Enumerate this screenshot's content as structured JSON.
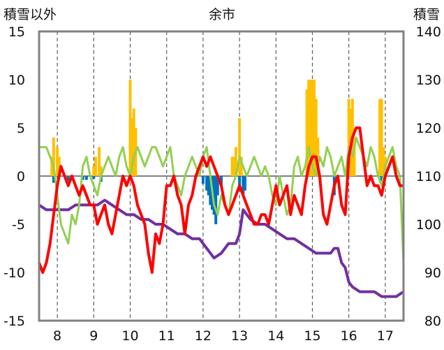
{
  "chart_data": {
    "type": "line",
    "title": "余市",
    "left_axis_label": "積雪以外",
    "right_axis_label": "積雪",
    "left_ylim": [
      -15,
      15
    ],
    "left_ticks": [
      15,
      10,
      5,
      0,
      -5,
      -10,
      -15
    ],
    "right_ylim": [
      80,
      140
    ],
    "right_ticks": [
      140,
      130,
      120,
      110,
      100,
      90,
      80
    ],
    "xlim": [
      7.5,
      17.5
    ],
    "x_ticks": [
      "8",
      "9",
      "10",
      "11",
      "12",
      "13",
      "14",
      "15",
      "16",
      "17"
    ],
    "grid": "dashed vertical",
    "colors": {
      "red": "#ff0000",
      "green": "#92d050",
      "purple": "#7030a0",
      "orange_bars": "#ffc000",
      "blue_bars": "#0070c0"
    },
    "series": [
      {
        "color": "red",
        "axis": "left",
        "x": [
          7.5,
          7.6,
          7.7,
          7.8,
          7.9,
          8.0,
          8.1,
          8.2,
          8.3,
          8.4,
          8.5,
          8.6,
          8.7,
          8.8,
          8.9,
          9.0,
          9.1,
          9.2,
          9.3,
          9.4,
          9.5,
          9.6,
          9.7,
          9.8,
          9.9,
          10.0,
          10.1,
          10.2,
          10.3,
          10.4,
          10.5,
          10.6,
          10.7,
          10.8,
          10.9,
          11.0,
          11.1,
          11.2,
          11.3,
          11.4,
          11.5,
          11.6,
          11.7,
          11.8,
          11.9,
          12.0,
          12.1,
          12.2,
          12.3,
          12.4,
          12.5,
          12.6,
          12.7,
          12.8,
          12.9,
          13.0,
          13.1,
          13.2,
          13.3,
          13.4,
          13.5,
          13.6,
          13.7,
          13.8,
          13.9,
          14.0,
          14.1,
          14.2,
          14.3,
          14.4,
          14.5,
          14.6,
          14.7,
          14.8,
          14.9,
          15.0,
          15.1,
          15.2,
          15.3,
          15.4,
          15.5,
          15.6,
          15.7,
          15.8,
          15.9,
          16.0,
          16.1,
          16.2,
          16.3,
          16.4,
          16.5,
          16.6,
          16.7,
          16.8,
          16.9,
          17.0,
          17.1,
          17.2,
          17.3,
          17.4,
          17.5
        ],
        "values": [
          -9,
          -10,
          -9,
          -7,
          -4,
          -1,
          1,
          0,
          -1,
          0,
          -1,
          -2,
          -1,
          -2,
          -3,
          -3,
          -5,
          -4,
          -3,
          -5,
          -6,
          -4,
          -2,
          0,
          -1,
          0,
          -1,
          -3,
          -4,
          -5,
          -8,
          -10,
          -6,
          -7,
          -5,
          -1,
          -1,
          0,
          -2,
          -3,
          -6,
          -3,
          -2,
          0,
          1,
          2,
          1,
          2,
          1,
          0,
          -1,
          -3,
          -4,
          -3,
          -2,
          -1,
          -2,
          -3,
          -4,
          -5,
          -5,
          -4,
          -4,
          -5,
          -3,
          -1,
          -3,
          -2,
          -1,
          -4,
          -2,
          -3,
          -4,
          -1,
          1,
          2,
          2,
          0,
          -4,
          -5,
          -3,
          -1,
          0,
          -3,
          -4,
          2,
          4,
          5,
          5,
          2,
          -1,
          0,
          -1,
          -1,
          -2,
          0,
          1,
          2,
          0,
          -1,
          -1
        ]
      },
      {
        "color": "green",
        "axis": "left",
        "x": [
          7.5,
          7.6,
          7.7,
          7.8,
          7.9,
          8.0,
          8.1,
          8.2,
          8.3,
          8.4,
          8.5,
          8.6,
          8.7,
          8.8,
          8.9,
          9.0,
          9.1,
          9.2,
          9.3,
          9.4,
          9.5,
          9.6,
          9.7,
          9.8,
          9.9,
          10.0,
          10.1,
          10.2,
          10.3,
          10.4,
          10.5,
          10.6,
          10.7,
          10.8,
          10.9,
          11.0,
          11.1,
          11.2,
          11.3,
          11.4,
          11.5,
          11.6,
          11.7,
          11.8,
          11.9,
          12.0,
          12.1,
          12.2,
          12.3,
          12.4,
          12.5,
          12.6,
          12.7,
          12.8,
          12.9,
          13.0,
          13.1,
          13.2,
          13.3,
          13.4,
          13.5,
          13.6,
          13.7,
          13.8,
          13.9,
          14.0,
          14.1,
          14.2,
          14.3,
          14.4,
          14.5,
          14.6,
          14.7,
          14.8,
          14.9,
          15.0,
          15.1,
          15.2,
          15.3,
          15.4,
          15.5,
          15.6,
          15.7,
          15.8,
          15.9,
          16.0,
          16.1,
          16.2,
          16.3,
          16.4,
          16.5,
          16.6,
          16.7,
          16.8,
          16.9,
          17.0,
          17.1,
          17.2,
          17.3,
          17.4,
          17.5
        ],
        "values": [
          3,
          3,
          3,
          2,
          1,
          -2,
          -5,
          -6,
          -7,
          -4,
          -5,
          -3,
          1,
          2,
          0,
          -1,
          -2,
          0,
          1,
          2,
          1,
          0,
          2,
          3,
          1,
          0,
          2,
          3,
          2,
          1,
          2,
          3,
          3,
          2,
          1,
          2,
          3,
          0,
          -1,
          -2,
          0,
          1,
          2,
          1,
          0,
          2,
          3,
          0,
          -3,
          -4,
          -2,
          -3,
          -4,
          -1,
          0,
          2,
          1,
          0,
          1,
          2,
          1,
          0,
          1,
          0,
          -2,
          -3,
          0,
          -2,
          -4,
          -3,
          1,
          2,
          0,
          1,
          3,
          1,
          0,
          2,
          1,
          3,
          2,
          0,
          1,
          2,
          0,
          3,
          2,
          4,
          3,
          2,
          1,
          3,
          2,
          0,
          -1,
          1,
          2,
          3,
          1,
          0,
          -9
        ]
      },
      {
        "color": "purple",
        "axis": "right",
        "x": [
          7.5,
          7.7,
          7.9,
          8.1,
          8.3,
          8.5,
          8.7,
          8.9,
          9.1,
          9.3,
          9.5,
          9.7,
          9.9,
          10.1,
          10.3,
          10.5,
          10.7,
          10.9,
          11.1,
          11.3,
          11.5,
          11.7,
          11.9,
          12.1,
          12.3,
          12.5,
          12.7,
          12.9,
          13.0,
          13.1,
          13.3,
          13.5,
          13.7,
          13.9,
          14.1,
          14.3,
          14.5,
          14.7,
          14.9,
          15.1,
          15.3,
          15.5,
          15.6,
          15.7,
          15.8,
          15.9,
          16.0,
          16.1,
          16.3,
          16.5,
          16.7,
          16.9,
          17.1,
          17.3,
          17.5
        ],
        "values": [
          104,
          103,
          103,
          103,
          103,
          104,
          104,
          104,
          104,
          105,
          104,
          103,
          102,
          102,
          101,
          101,
          100,
          100,
          99,
          98,
          98,
          97,
          97,
          95,
          93,
          94,
          96,
          96,
          98,
          103,
          101,
          100,
          100,
          99,
          98,
          97,
          97,
          96,
          95,
          94,
          94,
          94,
          95,
          95,
          92,
          91,
          88,
          87,
          86,
          86,
          86,
          85,
          85,
          85,
          86
        ]
      }
    ],
    "bars": [
      {
        "color": "orange_bars",
        "axis": "left",
        "x": [
          7.85,
          7.9,
          8.0,
          8.05,
          9.0,
          9.05,
          9.15,
          9.2,
          10.0,
          10.05,
          10.1,
          10.15,
          12.8,
          12.85,
          12.9,
          13.0,
          13.05,
          14.85,
          14.9,
          14.95,
          15.0,
          15.05,
          15.1,
          15.15,
          16.0,
          16.05,
          16.1,
          16.15,
          16.85,
          16.9,
          16.95,
          17.0
        ],
        "values": [
          2,
          4,
          3,
          2,
          1,
          2,
          3,
          1,
          10,
          6,
          7,
          5,
          2,
          2,
          3,
          6,
          2,
          9,
          10,
          10,
          10,
          10,
          8,
          4,
          8,
          7,
          8,
          4,
          8,
          8,
          3,
          2
        ]
      },
      {
        "color": "blue_bars",
        "axis": "left",
        "x": [
          7.9,
          8.3,
          8.7,
          8.8,
          9.0,
          9.2,
          12.0,
          12.1,
          12.15,
          12.2,
          12.25,
          12.3,
          12.35,
          12.4,
          12.5,
          13.0,
          13.1,
          13.15,
          14.1,
          15.6,
          16.9
        ],
        "values": [
          -0.7,
          -0.5,
          -0.4,
          -0.4,
          -0.3,
          -0.6,
          -0.8,
          -1.5,
          -2,
          -3,
          -3.5,
          -4,
          -5,
          -2,
          -1,
          -1,
          -2,
          -1.5,
          -0.3,
          -2,
          -0.5
        ]
      }
    ]
  }
}
